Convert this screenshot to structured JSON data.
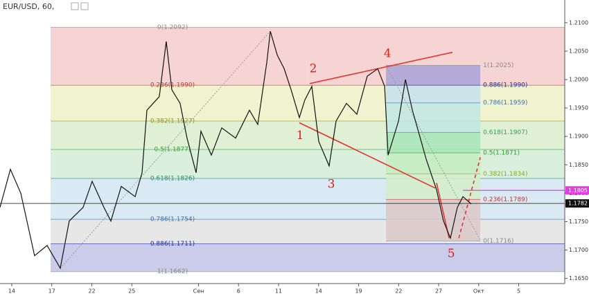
{
  "chart_data": {
    "type": "line",
    "title": "EUR/USD, 60,",
    "color": "#111111",
    "xlim": [
      -0.88,
      41.45
    ],
    "ylim": [
      1.1641,
      1.214
    ],
    "xticks": [
      {
        "value": 0,
        "label": "14"
      },
      {
        "value": 3,
        "label": "17"
      },
      {
        "value": 6,
        "label": "22"
      },
      {
        "value": 9,
        "label": "25"
      },
      {
        "value": 14,
        "label": "Сен"
      },
      {
        "value": 17,
        "label": "6"
      },
      {
        "value": 20,
        "label": "11"
      },
      {
        "value": 23,
        "label": "14"
      },
      {
        "value": 26,
        "label": "19"
      },
      {
        "value": 29,
        "label": "22"
      },
      {
        "value": 32,
        "label": "27"
      },
      {
        "value": 35,
        "label": "Окт"
      },
      {
        "value": 38,
        "label": "5"
      }
    ],
    "yticks": [
      {
        "value": 1.21,
        "label": "1.2100"
      },
      {
        "value": 1.205,
        "label": "1.2050"
      },
      {
        "value": 1.2,
        "label": "1.2000"
      },
      {
        "value": 1.195,
        "label": "1.1950"
      },
      {
        "value": 1.19,
        "label": "1.1900"
      },
      {
        "value": 1.185,
        "label": "1.1850"
      },
      {
        "value": 1.18,
        "label": "1.1800"
      },
      {
        "value": 1.175,
        "label": "1.1750"
      },
      {
        "value": 1.17,
        "label": "1.1700"
      },
      {
        "value": 1.165,
        "label": "1.1650"
      }
    ],
    "x": [
      -0.88,
      -0.1,
      0.68,
      1.71,
      2.65,
      3.64,
      4.31,
      5.35,
      6.03,
      6.91,
      7.43,
      8.21,
      9.25,
      9.77,
      10.13,
      11.06,
      11.58,
      12.0,
      12.62,
      13.14,
      13.82,
      14.18,
      14.96,
      15.74,
      16.78,
      17.82,
      18.44,
      19.12,
      19.38,
      19.9,
      20.42,
      20.94,
      21.56,
      21.97,
      22.49,
      23.01,
      23.79,
      24.31,
      25.09,
      25.87,
      26.65,
      27.43,
      27.95,
      28.21,
      28.99,
      29.51,
      30.03,
      30.55,
      31.06,
      31.84,
      32.36,
      32.88,
      33.4,
      33.82,
      34.44
    ],
    "values": [
      1.1775,
      1.1842,
      1.18,
      1.169,
      1.1708,
      1.1668,
      1.1751,
      1.1775,
      1.1821,
      1.1775,
      1.1751,
      1.1812,
      1.1794,
      1.1836,
      1.1946,
      1.197,
      1.2067,
      1.1982,
      1.1958,
      1.1897,
      1.1836,
      1.1909,
      1.1867,
      1.1915,
      1.1897,
      1.1946,
      1.1921,
      1.2031,
      1.2085,
      1.2043,
      1.2019,
      1.1982,
      1.1933,
      1.1964,
      1.1988,
      1.1891,
      1.1848,
      1.1927,
      1.1958,
      1.1939,
      1.2006,
      1.2019,
      1.1988,
      1.1867,
      1.1927,
      1.2,
      1.1946,
      1.1903,
      1.186,
      1.1806,
      1.1751,
      1.1721,
      1.1775,
      1.1794,
      1.1781
    ],
    "fibs": [
      {
        "x_range": [
          2.91,
          41.45
        ],
        "levels": [
          {
            "value": 1.2092,
            "label": "0(1.2092)",
            "color": "#888888"
          },
          {
            "value": 1.199,
            "label": "0.236(1.1990)",
            "color": "#c0392b"
          },
          {
            "value": 1.1927,
            "label": "0.382(1.1927)",
            "color": "#8c9a1a"
          },
          {
            "value": 1.1877,
            "label": "0.5(1.1877)",
            "color": "#3f9f3f"
          },
          {
            "value": 1.1826,
            "label": "0.618(1.1826)",
            "color": "#2a8a6a"
          },
          {
            "value": 1.1754,
            "label": "0.786(1.1754)",
            "color": "#3572b0"
          },
          {
            "value": 1.1711,
            "label": "0.886(1.1711)",
            "color": "#1f2a9a"
          },
          {
            "value": 1.1662,
            "label": "1(1.1662)",
            "color": "#888888"
          }
        ],
        "band_colors": [
          "#f5cccc",
          "#eef0c6",
          "#d9edcc",
          "#d3ecd6",
          "#d3e6f2",
          "#e3e3e3",
          "#c2c2e6"
        ]
      },
      {
        "x_range": [
          28.05,
          35.12
        ],
        "levels": [
          {
            "value": 1.2025,
            "label": "1(1.2025)",
            "color": "#888888"
          },
          {
            "value": 1.199,
            "label": "0.886(1.1990)",
            "color": "#1f2a9a"
          },
          {
            "value": 1.1959,
            "label": "0.786(1.1959)",
            "color": "#3572b0"
          },
          {
            "value": 1.1907,
            "label": "0.618(1.1907)",
            "color": "#2fa05a"
          },
          {
            "value": 1.1871,
            "label": "0.5(1.1871)",
            "color": "#28a028"
          },
          {
            "value": 1.1834,
            "label": "0.382(1.1834)",
            "color": "#8cab1a"
          },
          {
            "value": 1.1789,
            "label": "0.236(1.1789)",
            "color": "#c0392b"
          },
          {
            "value": 1.1716,
            "label": "0(1.1716)",
            "color": "#888888"
          }
        ],
        "band_colors": [
          "#a9a3d8",
          "#c6e0ee",
          "#bfe8e2",
          "#a8e6b8",
          "#c4ecc0",
          "#d3edc8",
          "#dcc8c8"
        ]
      }
    ],
    "trend_lines": [
      {
        "x": [
          3.64,
          19.38
        ],
        "y": [
          1.1668,
          1.2085
        ],
        "color": "#9a9a9a",
        "style": "dotted"
      },
      {
        "x": [
          28.05,
          35.12
        ],
        "y": [
          1.2025,
          1.1717
        ],
        "color": "#9a9a9a",
        "style": "dotted"
      },
      {
        "x": [
          22.34,
          33.04
        ],
        "y": [
          1.1993,
          1.2048
        ],
        "color": "#e8322d",
        "style": "solid"
      },
      {
        "x": [
          21.56,
          31.74
        ],
        "y": [
          1.1924,
          1.1809
        ],
        "color": "#e8322d",
        "style": "solid"
      },
      {
        "x": [
          31.84,
          32.78
        ],
        "y": [
          1.1818,
          1.1721
        ],
        "color": "#e8322d",
        "style": "solid"
      },
      {
        "x": [
          33.51,
          35.12
        ],
        "y": [
          1.1721,
          1.1863
        ],
        "color": "#e8322d",
        "style": "dashed"
      }
    ],
    "wave_labels": [
      {
        "label": "1",
        "x": 21.61,
        "y": 1.1901
      },
      {
        "label": "2",
        "x": 22.6,
        "y": 1.2018
      },
      {
        "label": "3",
        "x": 23.95,
        "y": 1.1815
      },
      {
        "label": "4",
        "x": 28.16,
        "y": 1.2045
      },
      {
        "label": "5",
        "x": 32.94,
        "y": 1.1693
      }
    ],
    "price_lines": [
      {
        "value": 1.1805,
        "label": "1.1805",
        "color": "#e040e0",
        "from": 33.82
      },
      {
        "value": 1.1782,
        "label": "1.1782",
        "color": "#111111",
        "from": -0.88
      }
    ]
  }
}
